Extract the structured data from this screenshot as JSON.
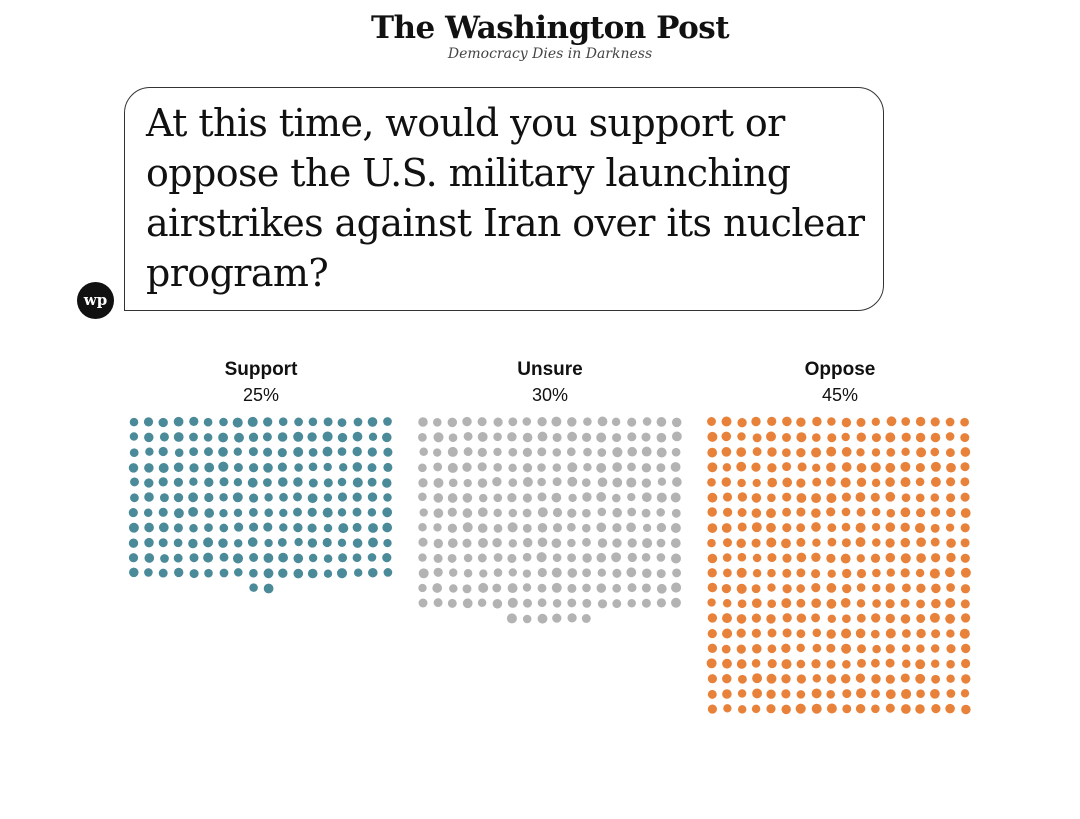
{
  "masthead": {
    "logo": "The Washington Post",
    "tagline": "Democracy Dies in Darkness"
  },
  "badge": {
    "text": "wp"
  },
  "question": "At this time, would you support or oppose the U.S. military launching airstrikes against Iran over its nuclear program?",
  "chart_data": {
    "type": "dot",
    "title": "At this time, would you support or oppose the U.S. military launching airstrikes against Iran over its nuclear program?",
    "categories": [
      "Support",
      "Unsure",
      "Oppose"
    ],
    "values": [
      25,
      30,
      45
    ],
    "value_labels": [
      "25%",
      "30%",
      "45%"
    ],
    "colors": [
      "#4a8a99",
      "#b3b3b3",
      "#e8823a"
    ],
    "dots_per_percent": 8
  }
}
